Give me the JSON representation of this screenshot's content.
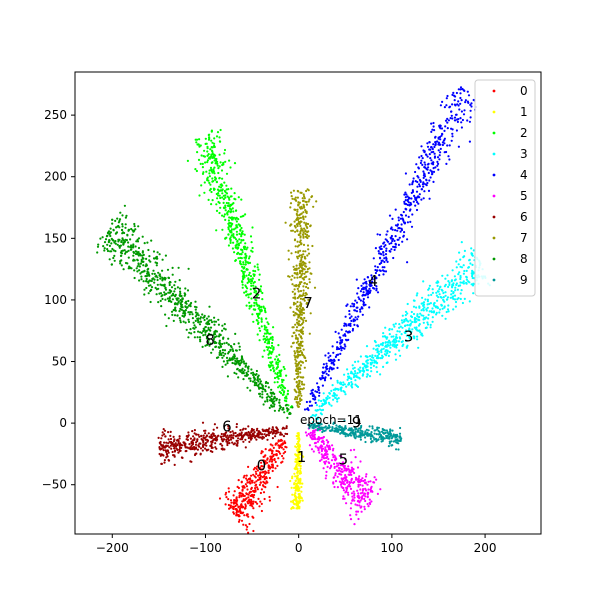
{
  "chart_data": {
    "type": "scatter",
    "title": "",
    "xlabel": "",
    "ylabel": "",
    "xlim": [
      -240,
      260
    ],
    "ylim": [
      -90,
      285
    ],
    "xticks": [
      -200,
      -100,
      0,
      100,
      200
    ],
    "xtick_labels": [
      "−200",
      "−100",
      "0",
      "100",
      "200"
    ],
    "yticks": [
      -50,
      0,
      50,
      100,
      150,
      200,
      250
    ],
    "ytick_labels": [
      "−50",
      "0",
      "50",
      "100",
      "150",
      "200",
      "250"
    ],
    "grid": false,
    "legend_position": "top-right",
    "annotation": "epoch=11",
    "series": [
      {
        "name": "0",
        "color": "#ff0000",
        "label_at": [
          -40,
          -35
        ],
        "clusters": [
          {
            "x": [
              -15,
              -70
            ],
            "y": [
              -15,
              -75
            ],
            "width": 15,
            "count": 350
          }
        ]
      },
      {
        "name": "1",
        "color": "#ffff00",
        "label_at": [
          3,
          -28
        ],
        "clusters": [
          {
            "x": [
              0,
              -2
            ],
            "y": [
              -8,
              -70
            ],
            "width": 5,
            "count": 200
          }
        ]
      },
      {
        "name": "2",
        "color": "#00ff00",
        "label_at": [
          -45,
          105
        ],
        "clusters": [
          {
            "x": [
              -10,
              -100
            ],
            "y": [
              10,
              235
            ],
            "width": 12,
            "count": 650
          }
        ]
      },
      {
        "name": "3",
        "color": "#00ffff",
        "label_at": [
          118,
          70
        ],
        "clusters": [
          {
            "x": [
              12,
              195
            ],
            "y": [
              6,
              130
            ],
            "width": 14,
            "count": 650
          }
        ]
      },
      {
        "name": "4",
        "color": "#0000ff",
        "label_at": [
          80,
          115
        ],
        "clusters": [
          {
            "x": [
              8,
              180
            ],
            "y": [
              10,
              270
            ],
            "width": 12,
            "count": 650
          }
        ]
      },
      {
        "name": "5",
        "color": "#ff00ff",
        "label_at": [
          48,
          -30
        ],
        "clusters": [
          {
            "x": [
              10,
              75
            ],
            "y": [
              -5,
              -68
            ],
            "width": 15,
            "count": 350
          }
        ]
      },
      {
        "name": "6",
        "color": "#990000",
        "label_at": [
          -77,
          -3
        ],
        "clusters": [
          {
            "x": [
              -12,
              -150
            ],
            "y": [
              -5,
              -20
            ],
            "width": 10,
            "count": 450
          }
        ]
      },
      {
        "name": "7",
        "color": "#999900",
        "label_at": [
          10,
          97
        ],
        "clusters": [
          {
            "x": [
              0,
              3
            ],
            "y": [
              12,
              190
            ],
            "width": 10,
            "count": 500
          }
        ]
      },
      {
        "name": "8",
        "color": "#009900",
        "label_at": [
          -95,
          67
        ],
        "clusters": [
          {
            "x": [
              -10,
              -205
            ],
            "y": [
              5,
              160
            ],
            "width": 15,
            "count": 800
          }
        ]
      },
      {
        "name": "9",
        "color": "#009999",
        "label_at": [
          62,
          0
        ],
        "clusters": [
          {
            "x": [
              10,
              110
            ],
            "y": [
              -2,
              -12
            ],
            "width": 6,
            "count": 300
          }
        ]
      }
    ]
  }
}
